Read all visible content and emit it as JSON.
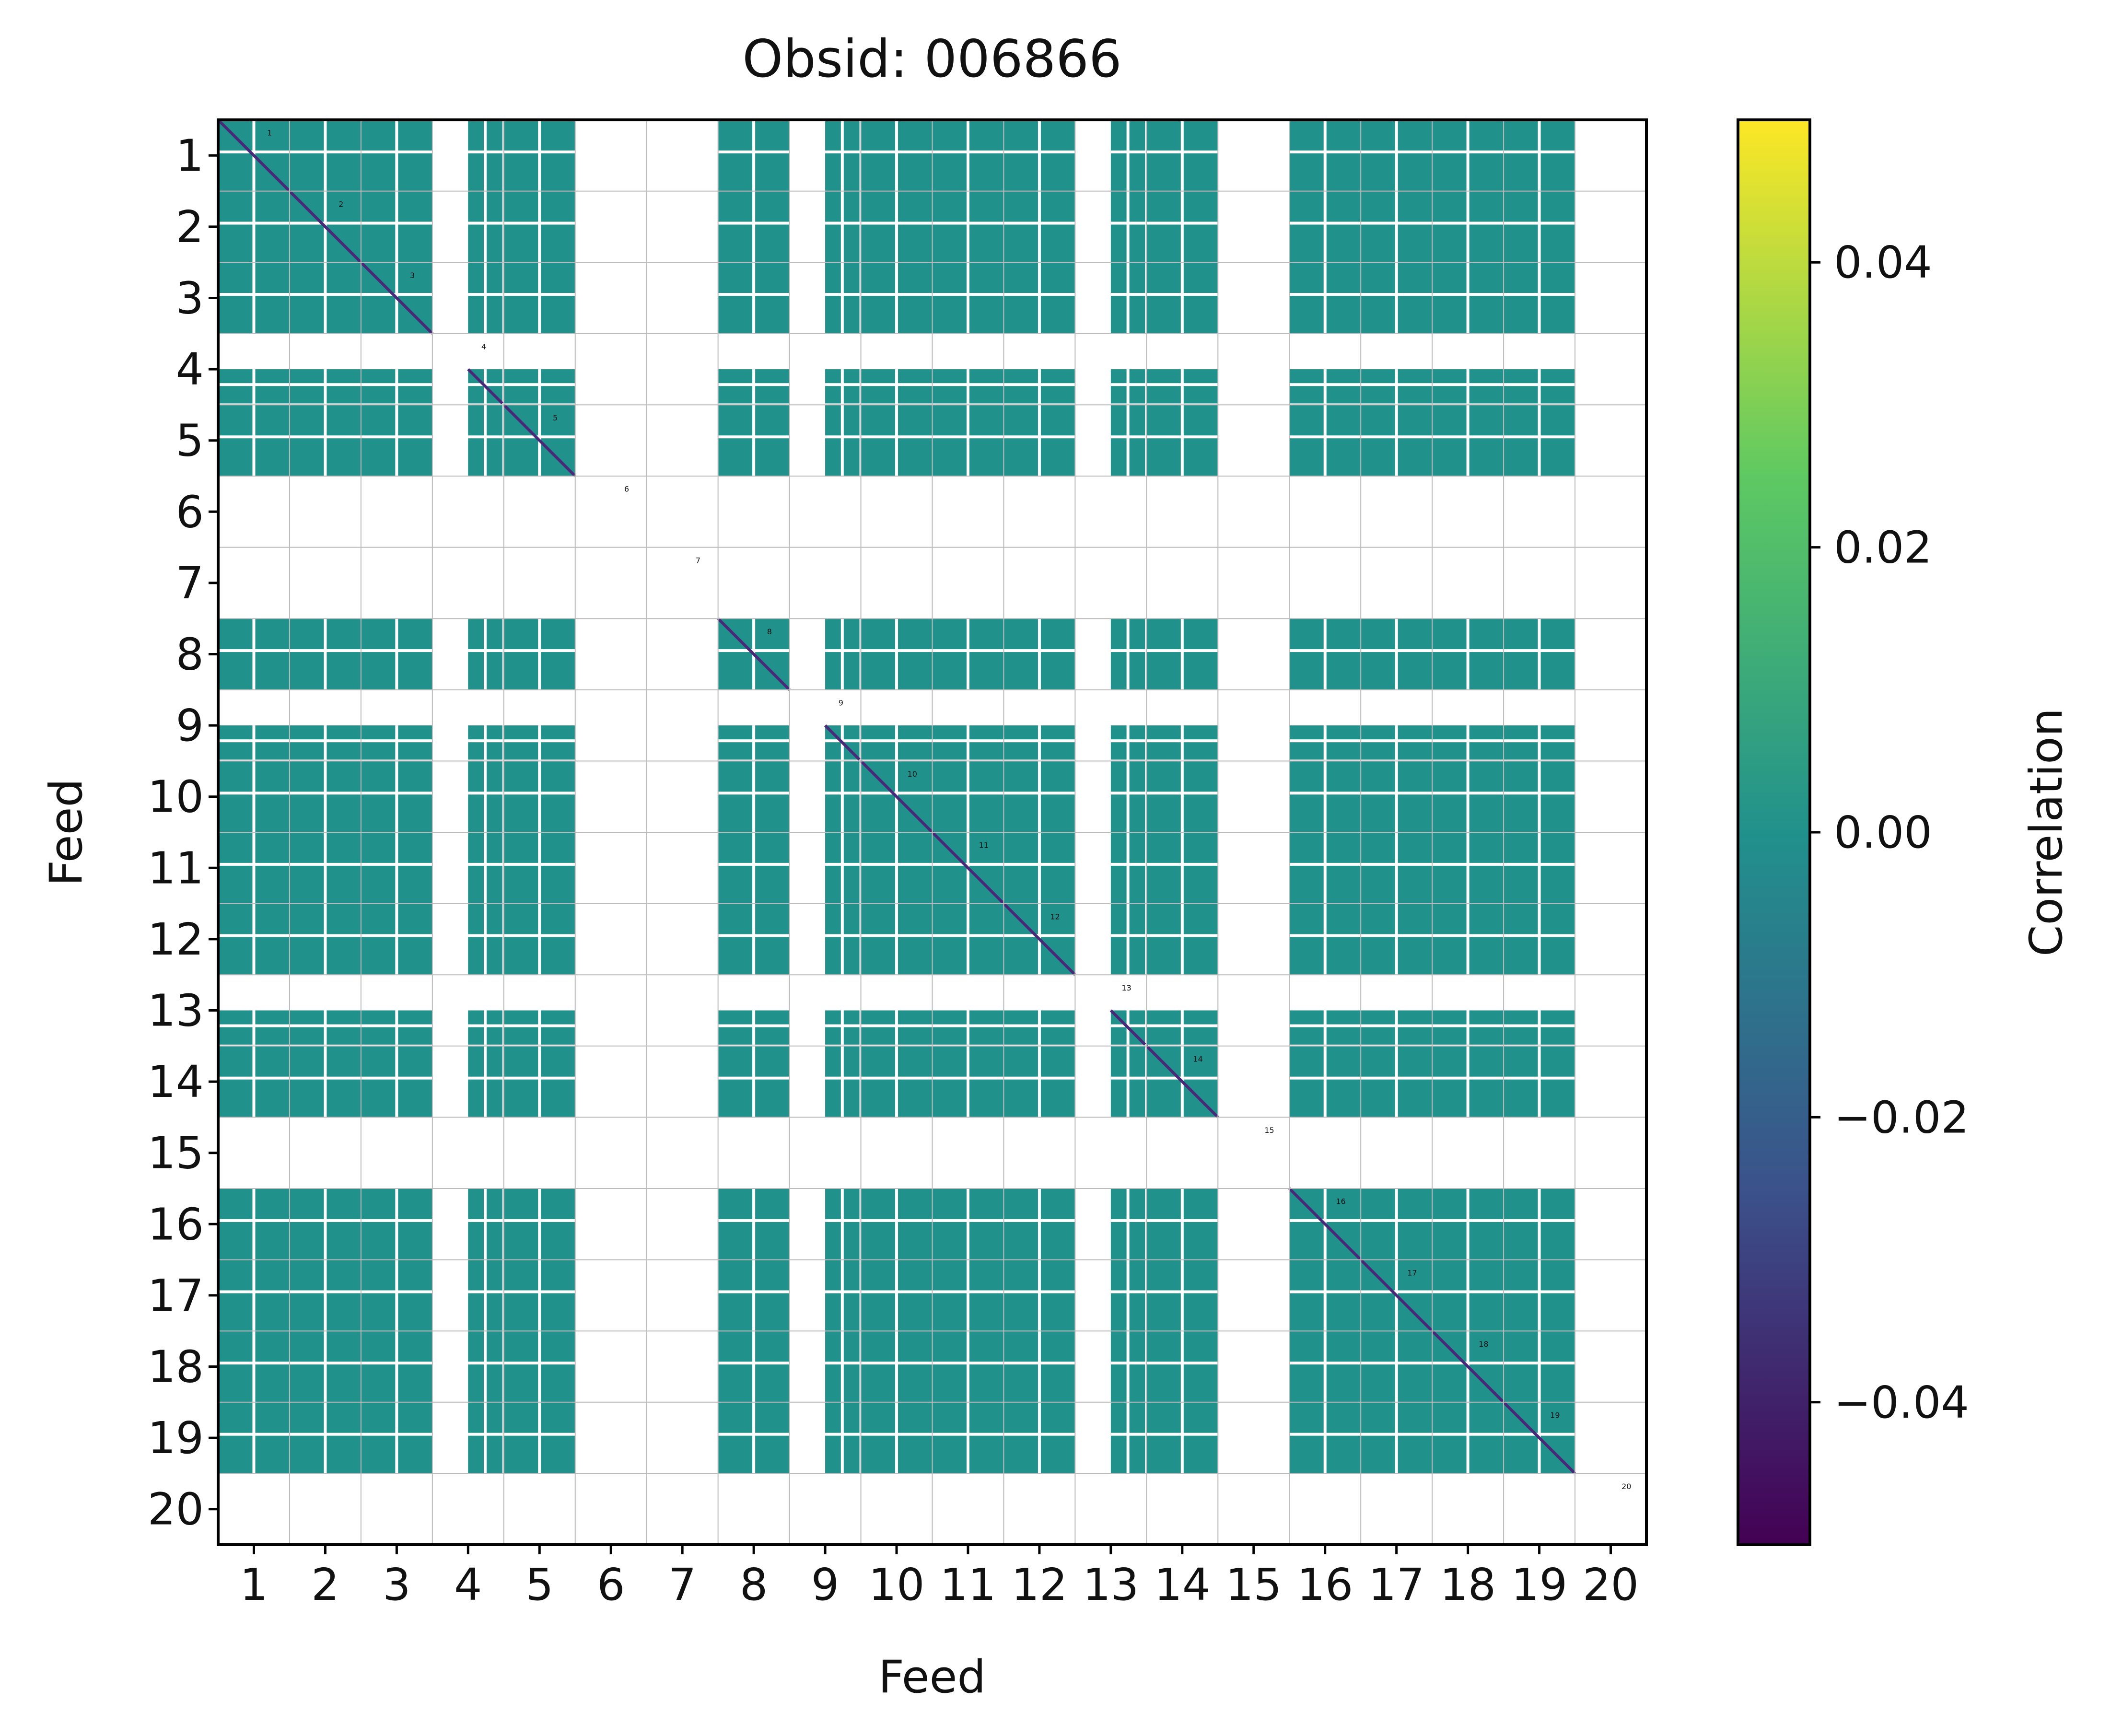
{
  "chart_data": {
    "type": "heatmap",
    "title": "Obsid: 006866",
    "xlabel": "Feed",
    "ylabel": "Feed",
    "feeds": [
      "1",
      "2",
      "3",
      "4",
      "5",
      "6",
      "7",
      "8",
      "9",
      "10",
      "11",
      "12",
      "13",
      "14",
      "15",
      "16",
      "17",
      "18",
      "19",
      "20"
    ],
    "missing_feeds": [
      6,
      7,
      15,
      20
    ],
    "partial_feeds": [
      4,
      9,
      13
    ],
    "diagonal_value": -0.045,
    "offdiagonal_value": 0.0,
    "colorbar": {
      "label": "Correlation",
      "vmin": -0.05,
      "vmax": 0.05,
      "ticks": [
        -0.04,
        -0.02,
        0.0,
        0.02,
        0.04
      ],
      "tick_labels": [
        "−0.04",
        "−0.02",
        "0.00",
        "0.02",
        "0.04"
      ],
      "colormap": "viridis",
      "stops": [
        "#440154",
        "#3b528b",
        "#21918c",
        "#5ec962",
        "#fde725"
      ]
    },
    "colors": {
      "fill": "#21918c",
      "diagonal": "#482878",
      "gap": "#ffffff",
      "grid": "#bbbbbb",
      "axes": "#000000"
    }
  }
}
